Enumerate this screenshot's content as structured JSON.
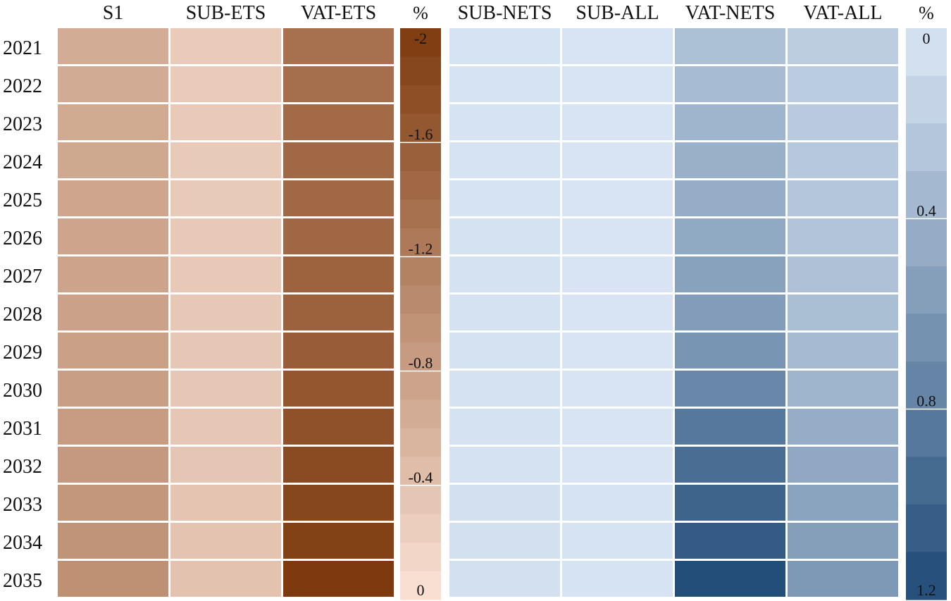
{
  "chart_data": {
    "type": "heatmap",
    "rows": [
      "2021",
      "2022",
      "2023",
      "2024",
      "2025",
      "2026",
      "2027",
      "2028",
      "2029",
      "2030",
      "2031",
      "2032",
      "2033",
      "2034",
      "2035"
    ],
    "panels": [
      {
        "name": "brown",
        "columns": [
          "S1",
          "SUB-ETS",
          "VAT-ETS"
        ],
        "values": [
          [
            -0.65,
            -0.28,
            -1.35
          ],
          [
            -0.66,
            -0.28,
            -1.38
          ],
          [
            -0.68,
            -0.29,
            -1.43
          ],
          [
            -0.7,
            -0.3,
            -1.45
          ],
          [
            -0.72,
            -0.3,
            -1.46
          ],
          [
            -0.73,
            -0.31,
            -1.47
          ],
          [
            -0.75,
            -0.31,
            -1.51
          ],
          [
            -0.77,
            -0.32,
            -1.53
          ],
          [
            -0.79,
            -0.33,
            -1.58
          ],
          [
            -0.81,
            -0.33,
            -1.67
          ],
          [
            -0.84,
            -0.34,
            -1.73
          ],
          [
            -0.87,
            -0.35,
            -1.8
          ],
          [
            -0.9,
            -0.36,
            -1.85
          ],
          [
            -0.94,
            -0.37,
            -1.92
          ],
          [
            -0.98,
            -0.38,
            -2.0
          ]
        ],
        "scale": {
          "title": "%",
          "min": -2,
          "max": 0,
          "tick_labels": [
            "-2",
            "-1.6",
            "-1.2",
            "-0.8",
            "-0.4",
            "0"
          ],
          "color_at_min": "#7e3a0e",
          "color_at_max": "#fbe3d6"
        }
      },
      {
        "name": "blue",
        "columns": [
          "SUB-NETS",
          "SUB-ALL",
          "VAT-NETS",
          "VAT-ALL"
        ],
        "values": [
          [
            0.03,
            0.02,
            0.3,
            0.2
          ],
          [
            0.03,
            0.02,
            0.33,
            0.21
          ],
          [
            0.03,
            0.02,
            0.38,
            0.22
          ],
          [
            0.03,
            0.02,
            0.42,
            0.24
          ],
          [
            0.03,
            0.02,
            0.44,
            0.25
          ],
          [
            0.04,
            0.02,
            0.47,
            0.27
          ],
          [
            0.04,
            0.02,
            0.53,
            0.29
          ],
          [
            0.04,
            0.02,
            0.57,
            0.31
          ],
          [
            0.04,
            0.02,
            0.63,
            0.34
          ],
          [
            0.04,
            0.02,
            0.73,
            0.38
          ],
          [
            0.04,
            0.02,
            0.85,
            0.44
          ],
          [
            0.04,
            0.02,
            0.93,
            0.48
          ],
          [
            0.05,
            0.03,
            1.0,
            0.52
          ],
          [
            0.05,
            0.03,
            1.07,
            0.55
          ],
          [
            0.05,
            0.03,
            1.17,
            0.6
          ]
        ],
        "scale": {
          "title": "%",
          "min": 0,
          "max": 1.2,
          "tick_labels": [
            "0",
            "0.4",
            "0.8",
            "1.2"
          ],
          "color_at_min": "#dbe7f5",
          "color_at_max": "#1f4a77"
        }
      }
    ]
  }
}
